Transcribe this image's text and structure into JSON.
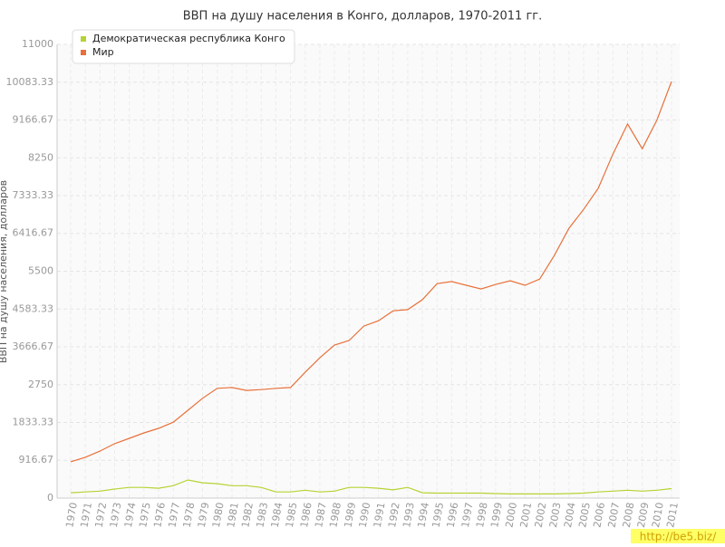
{
  "chart_data": {
    "type": "line",
    "title": "ВВП на душу населения в Конго, долларов, 1970-2011 гг.",
    "y_label": "ВВП на душу населения, долларов",
    "watermark": "http://be5.biz/",
    "categories": [
      "1970",
      "1971",
      "1972",
      "1973",
      "1974",
      "1975",
      "1976",
      "1977",
      "1978",
      "1979",
      "1980",
      "1981",
      "1982",
      "1983",
      "1984",
      "1985",
      "1986",
      "1987",
      "1988",
      "1989",
      "1990",
      "1991",
      "1992",
      "1993",
      "1994",
      "1995",
      "1996",
      "1997",
      "1998",
      "1999",
      "2000",
      "2001",
      "2002",
      "2003",
      "2004",
      "2005",
      "2006",
      "2007",
      "2008",
      "2009",
      "2010",
      "2011"
    ],
    "series": [
      {
        "name": "Демократическая республика Конго",
        "color": "#b5d334",
        "values": [
          130,
          150,
          170,
          220,
          260,
          260,
          240,
          300,
          440,
          370,
          350,
          300,
          300,
          260,
          150,
          150,
          190,
          150,
          170,
          260,
          260,
          240,
          200,
          260,
          130,
          120,
          120,
          120,
          120,
          110,
          100,
          100,
          100,
          100,
          110,
          120,
          150,
          170,
          190,
          170,
          190,
          230
        ]
      },
      {
        "name": "Мир",
        "color": "#e8703a",
        "values": [
          880,
          990,
          1140,
          1320,
          1450,
          1580,
          1690,
          1840,
          2130,
          2420,
          2660,
          2680,
          2610,
          2630,
          2660,
          2680,
          3050,
          3400,
          3710,
          3820,
          4170,
          4300,
          4540,
          4570,
          4810,
          5200,
          5250,
          5160,
          5070,
          5180,
          5270,
          5160,
          5310,
          5880,
          6540,
          7000,
          7510,
          8340,
          9070,
          8470,
          9160,
          10100
        ]
      }
    ],
    "ylim": [
      0,
      11000
    ],
    "yticks": [
      0,
      916.67,
      1833.33,
      2750,
      3666.67,
      4583.33,
      5500,
      6416.67,
      7333.33,
      8250,
      9166.67,
      10083.33,
      11000
    ],
    "grid": true
  }
}
